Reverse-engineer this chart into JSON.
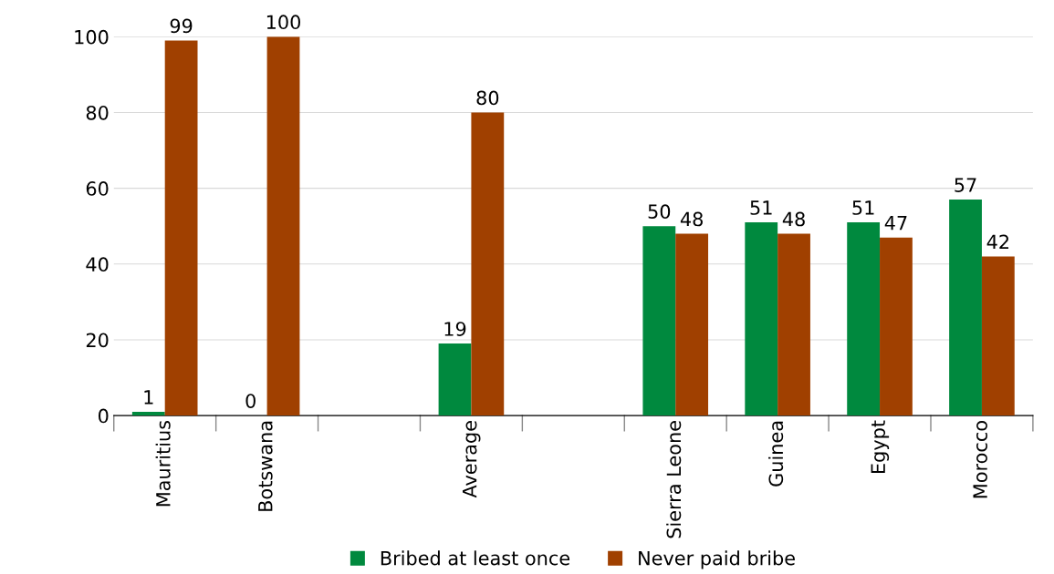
{
  "chart_data": {
    "type": "bar",
    "categories": [
      "Mauritius",
      "Botswana",
      null,
      "Average",
      null,
      "Sierra Leone",
      "Guinea",
      "Egypt",
      "Morocco"
    ],
    "series": [
      {
        "name": "Bribed at least once",
        "color": "#00893e",
        "values": [
          1,
          0,
          null,
          19,
          null,
          50,
          51,
          51,
          57
        ]
      },
      {
        "name": "Never paid bribe",
        "color": "#a04000",
        "values": [
          99,
          100,
          null,
          80,
          null,
          48,
          48,
          47,
          42
        ]
      }
    ],
    "ylim": [
      0,
      100
    ],
    "yticks": [
      0,
      20,
      40,
      60,
      80,
      100
    ],
    "grid": "y",
    "legend": "bottom",
    "data_labels": true
  }
}
